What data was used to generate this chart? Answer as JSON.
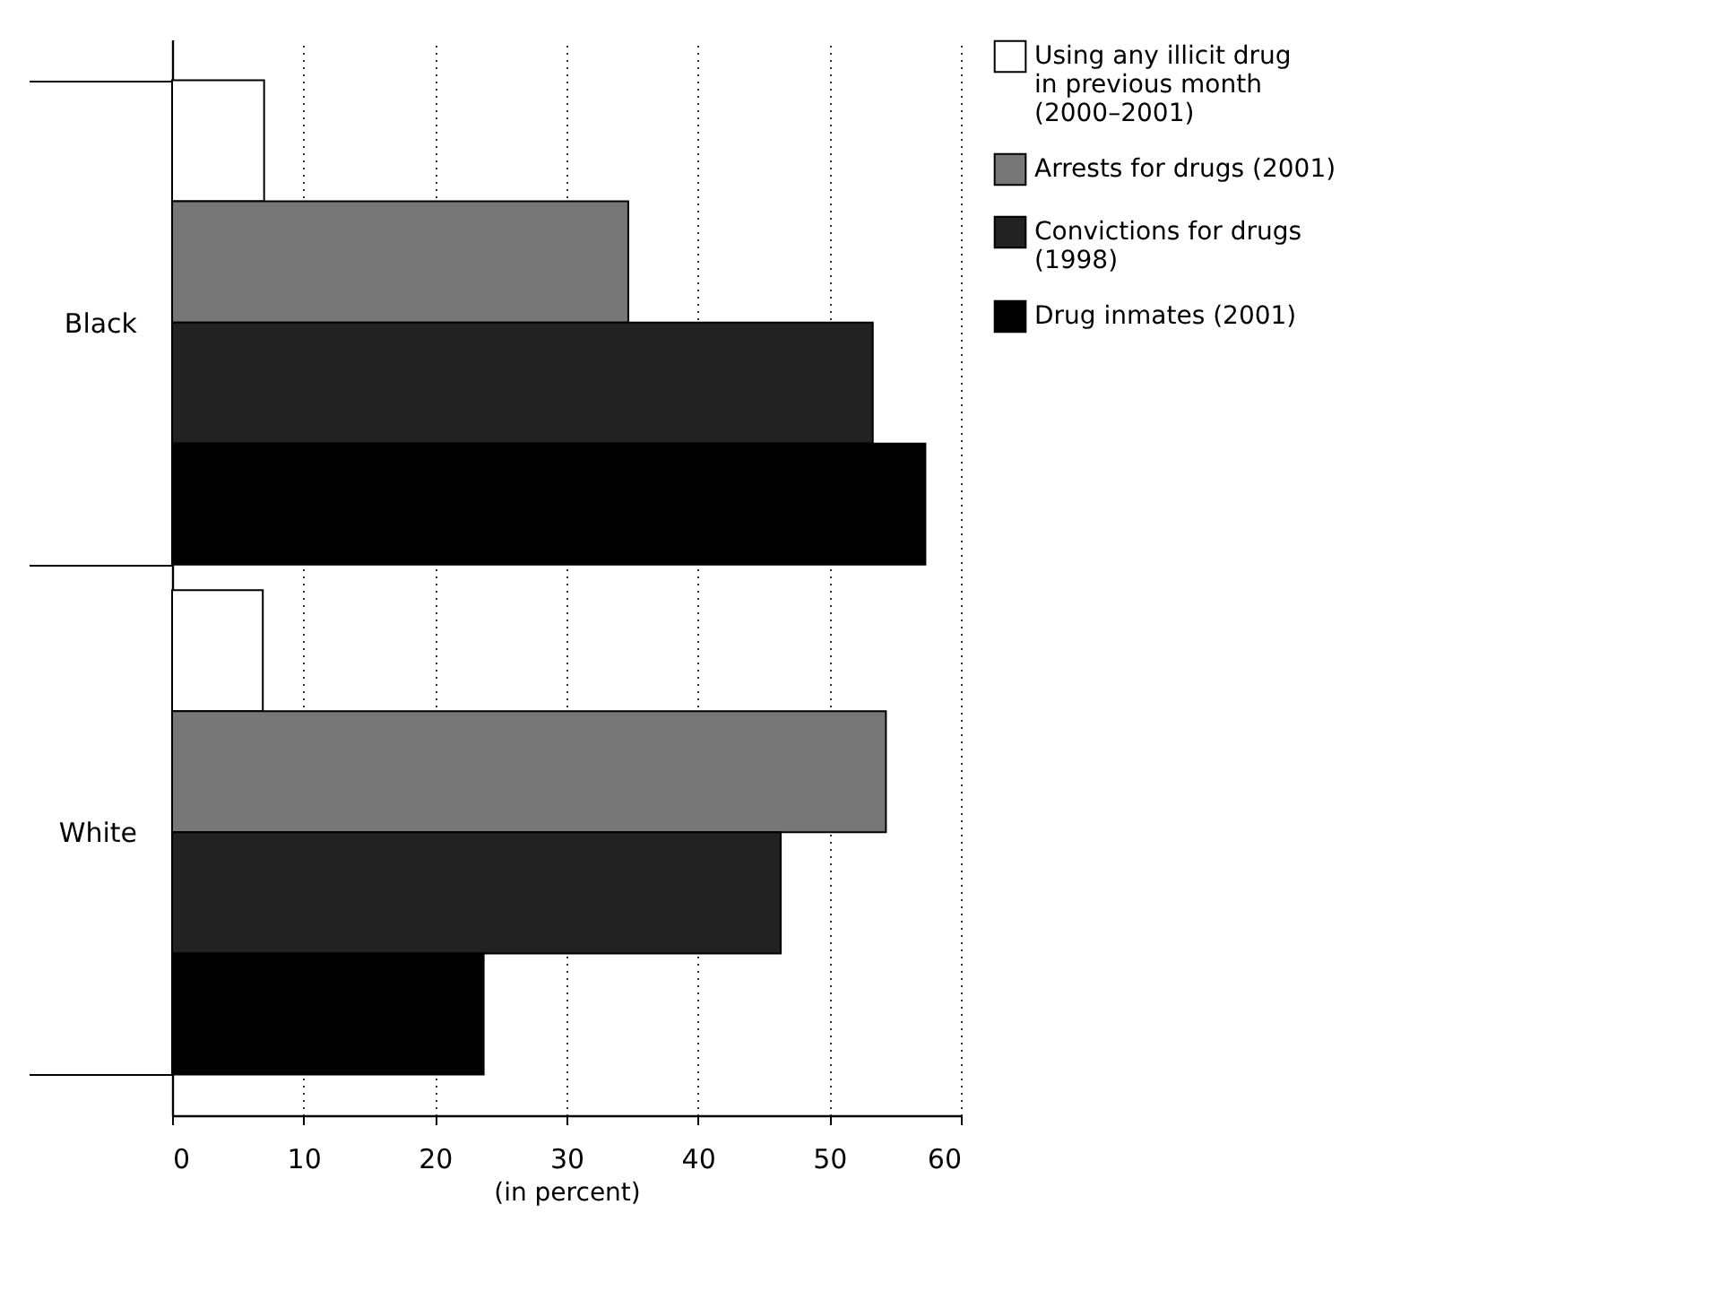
{
  "chart_data": {
    "type": "bar",
    "orientation": "horizontal",
    "xlabel": "(in percent)",
    "categories": [
      "Black",
      "White"
    ],
    "series": [
      {
        "name": "Using any illicit drug in previous month (2000–2001)",
        "color": "#ffffff",
        "values": [
          7,
          6.9
        ]
      },
      {
        "name": "Arrests for drugs (2001)",
        "color": "#777777",
        "values": [
          34.7,
          54.3
        ]
      },
      {
        "name": "Convictions for drugs (1998)",
        "color": "#222222",
        "values": [
          53.3,
          46.3
        ]
      },
      {
        "name": "Drug inmates (2001)",
        "color": "#000000",
        "values": [
          57.3,
          23.7
        ]
      }
    ],
    "xlim": [
      0,
      60
    ],
    "xticks": [
      0,
      10,
      20,
      30,
      40,
      50,
      60
    ],
    "grid": "x",
    "legend": "top right"
  }
}
